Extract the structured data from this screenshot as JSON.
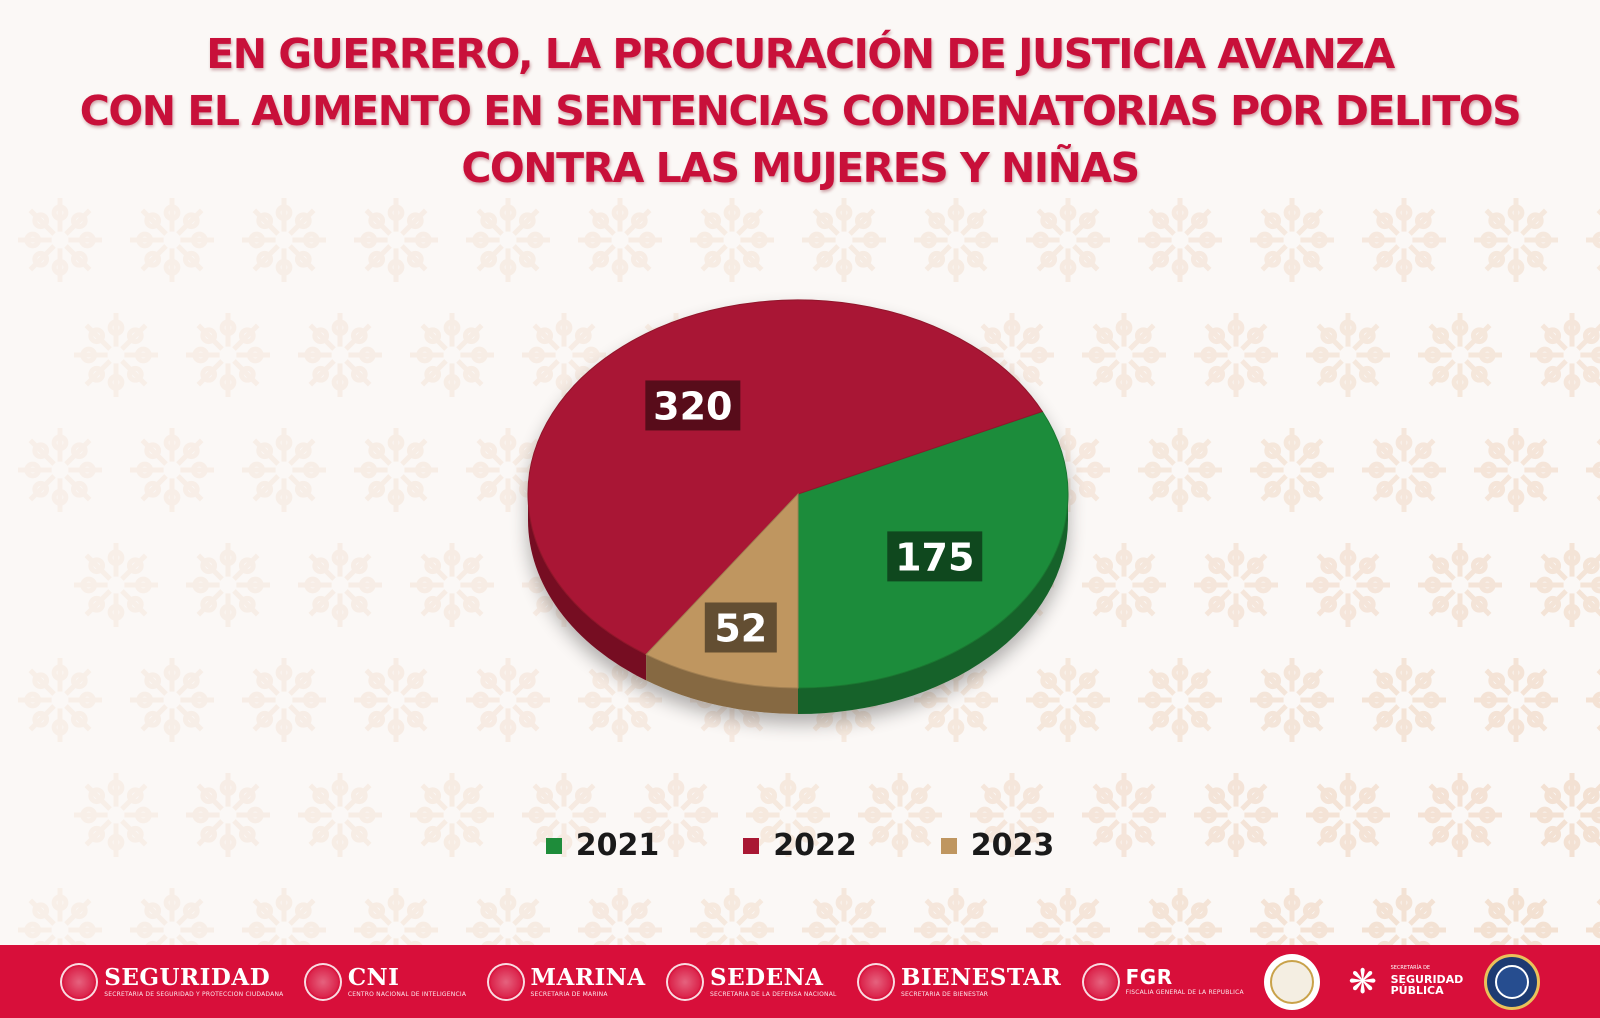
{
  "title": {
    "lines": [
      "EN GUERRERO, LA PROCURACIÓN DE JUSTICIA AVANZA",
      "CON EL AUMENTO EN SENTENCIAS CONDENATORIAS POR DELITOS",
      "CONTRA LAS MUJERES Y NIÑAS"
    ],
    "color": "#c8103a"
  },
  "chart_data": {
    "type": "pie",
    "title": "EN GUERRERO, LA PROCURACIÓN DE JUSTICIA AVANZA CON EL AUMENTO EN SENTENCIAS CONDENATORIAS POR DELITOS CONTRA LAS MUJERES Y NIÑAS",
    "categories": [
      "2021",
      "2022",
      "2023"
    ],
    "values": [
      175,
      320,
      52
    ],
    "colors": [
      "#1e8c3a",
      "#a91834",
      "#bf9660"
    ],
    "data_labels": [
      "175",
      "320",
      "52"
    ],
    "legend_position": "bottom",
    "style": "3d"
  },
  "footer": {
    "background": "#d80f3a",
    "logos": [
      {
        "name": "SEGURIDAD",
        "sub": "SECRETARÍA DE SEGURIDAD Y PROTECCIÓN CIUDADANA"
      },
      {
        "name": "CNI",
        "sub": "CENTRO NACIONAL DE INTELIGENCIA"
      },
      {
        "name": "MARINA",
        "sub": "SECRETARÍA DE MARINA"
      },
      {
        "name": "SEDENA",
        "sub": "SECRETARÍA DE LA DEFENSA NACIONAL"
      },
      {
        "name": "BIENESTAR",
        "sub": "SECRETARÍA DE BIENESTAR"
      },
      {
        "name": "FGR",
        "sub": "FISCALÍA GENERAL DE LA REPÚBLICA"
      }
    ],
    "ssp": {
      "small": "SECRETARÍA DE",
      "name_line1": "SEGURIDAD",
      "name_line2": "PÚBLICA"
    },
    "fge": "FGE",
    "icons": [
      "guardia-nacional-emblem-icon",
      "ssp-emblem-icon",
      "fge-emblem-icon"
    ]
  }
}
